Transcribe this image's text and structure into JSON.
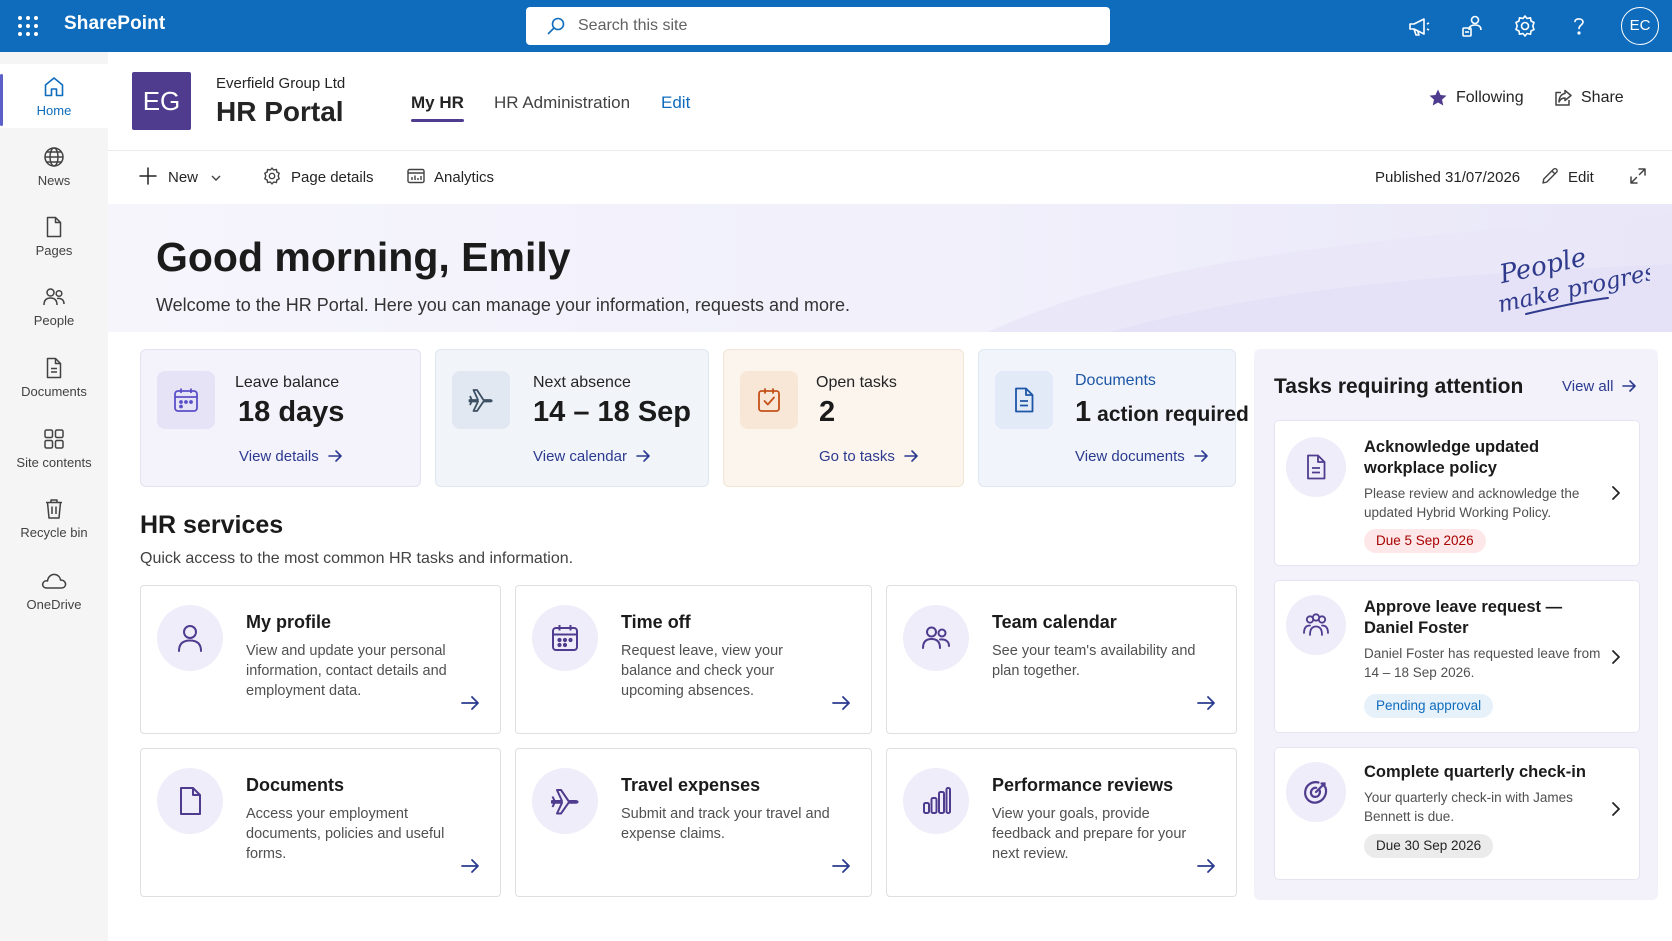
{
  "suite": {
    "app_name": "SharePoint",
    "search_placeholder": "Search this site",
    "user_initials": "EC"
  },
  "rail": {
    "items": [
      {
        "label": "Home",
        "icon": "home-icon",
        "active": true
      },
      {
        "label": "News",
        "icon": "globe-icon"
      },
      {
        "label": "Pages",
        "icon": "page-icon"
      },
      {
        "label": "People",
        "icon": "people-icon"
      },
      {
        "label": "Documents",
        "icon": "documents-icon"
      },
      {
        "label": "Site contents",
        "icon": "site-contents-icon"
      },
      {
        "label": "Recycle bin",
        "icon": "recycle-bin-icon"
      },
      {
        "label": "OneDrive",
        "icon": "cloud-icon"
      }
    ]
  },
  "site": {
    "logo_text": "EG",
    "org_name": "Everfield Group Ltd",
    "title": "HR Portal",
    "nav": [
      "My HR",
      "HR Administration",
      "Edit"
    ],
    "following_label": "Following",
    "share_label": "Share"
  },
  "commandbar": {
    "new_label": "New",
    "page_details_label": "Page details",
    "analytics_label": "Analytics",
    "published_label": "Published 31/07/2026",
    "edit_label": "Edit"
  },
  "hero": {
    "greeting": "Good morning, Emily",
    "subtitle": "Welcome to the HR Portal. Here you can manage your information, requests and more.",
    "script_line1": "People",
    "script_line2": "make progress"
  },
  "summary": [
    {
      "label": "Leave balance",
      "value": "18 days",
      "link": "View details",
      "icon": "calendar-icon",
      "accent": "#5b4fc7"
    },
    {
      "label": "Next absence",
      "value": "14 – 18 Sep",
      "link": "View calendar",
      "icon": "airplane-icon",
      "accent": "#3d4f63"
    },
    {
      "label": "Open tasks",
      "value": "2",
      "link": "Go to tasks",
      "icon": "task-check-icon",
      "accent": "#c4511a"
    },
    {
      "label": "Documents",
      "value": "1",
      "value_suffix": "action required",
      "link": "View documents",
      "icon": "document-icon",
      "accent": "#1d56a6"
    }
  ],
  "services": {
    "title": "HR services",
    "subtitle": "Quick access to the most common HR tasks and information.",
    "items": [
      {
        "title": "My profile",
        "desc": "View and update your personal information, contact details and employment data.",
        "icon": "person-icon"
      },
      {
        "title": "Time off",
        "desc": "Request leave, view your balance and check your upcoming absences.",
        "icon": "calendar-icon"
      },
      {
        "title": "Team calendar",
        "desc": "See your team's availability and plan together.",
        "icon": "team-icon"
      },
      {
        "title": "Documents",
        "desc": "Access your employment documents, policies and useful forms.",
        "icon": "document-icon"
      },
      {
        "title": "Travel expenses",
        "desc": "Submit and track your travel and expense claims.",
        "icon": "airplane-icon"
      },
      {
        "title": "Performance reviews",
        "desc": "View your goals, provide feedback and prepare for your next review.",
        "icon": "bar-chart-icon"
      }
    ]
  },
  "tasks": {
    "title": "Tasks requiring attention",
    "view_all": "View all",
    "items": [
      {
        "title": "Acknowledge updated workplace policy",
        "desc": "Please review and acknowledge the updated Hybrid Working Policy.",
        "badge": "Due 5 Sep 2026",
        "badge_color": "#c50f1f",
        "icon": "document-icon"
      },
      {
        "title": "Approve leave request — Daniel Foster",
        "desc": "Daniel Foster has requested leave from 14 – 18 Sep 2026.",
        "badge": "Pending approval",
        "badge_color": "#0f6cbd",
        "icon": "team-icon"
      },
      {
        "title": "Complete quarterly check-in",
        "desc": "Your quarterly check-in with James Bennett is due.",
        "badge": "Due 30 Sep 2026",
        "badge_color": "#242424",
        "icon": "target-icon"
      }
    ]
  }
}
